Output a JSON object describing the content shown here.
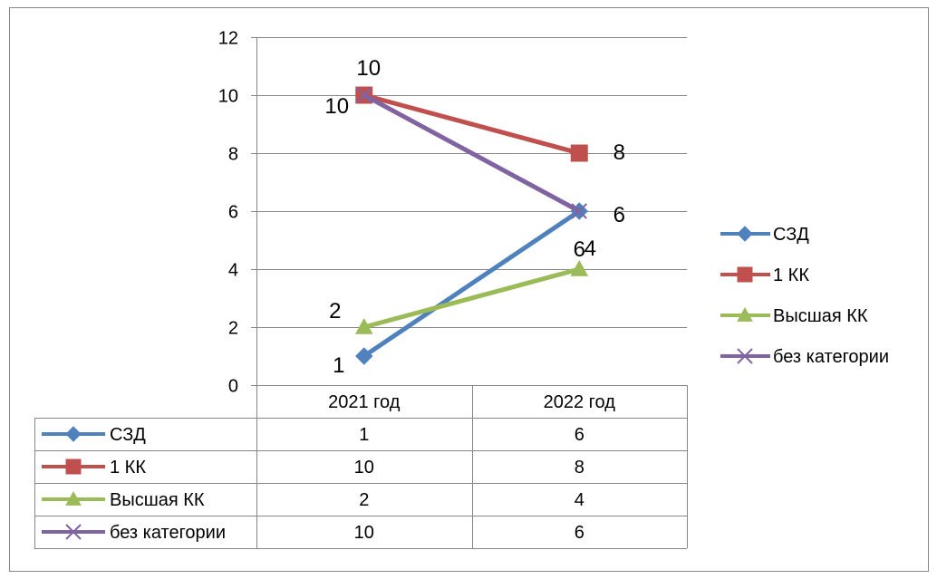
{
  "chart_data": {
    "type": "line",
    "categories": [
      "2021 год",
      "2022 год"
    ],
    "series": [
      {
        "name": "СЗД",
        "values": [
          1,
          6
        ],
        "color": "#4f81bd",
        "marker": "diamond"
      },
      {
        "name": "1 КК",
        "values": [
          10,
          8
        ],
        "color": "#c0504d",
        "marker": "square"
      },
      {
        "name": "Высшая КК",
        "values": [
          2,
          4
        ],
        "color": "#9bbb59",
        "marker": "triangle"
      },
      {
        "name": "без категории",
        "values": [
          10,
          6
        ],
        "color": "#8064a2",
        "marker": "x"
      }
    ],
    "ylim": [
      0,
      12
    ],
    "yticks": [
      "0",
      "2",
      "4",
      "6",
      "8",
      "10",
      "12"
    ],
    "grid": true,
    "legend_position": "right",
    "data_table": true
  }
}
